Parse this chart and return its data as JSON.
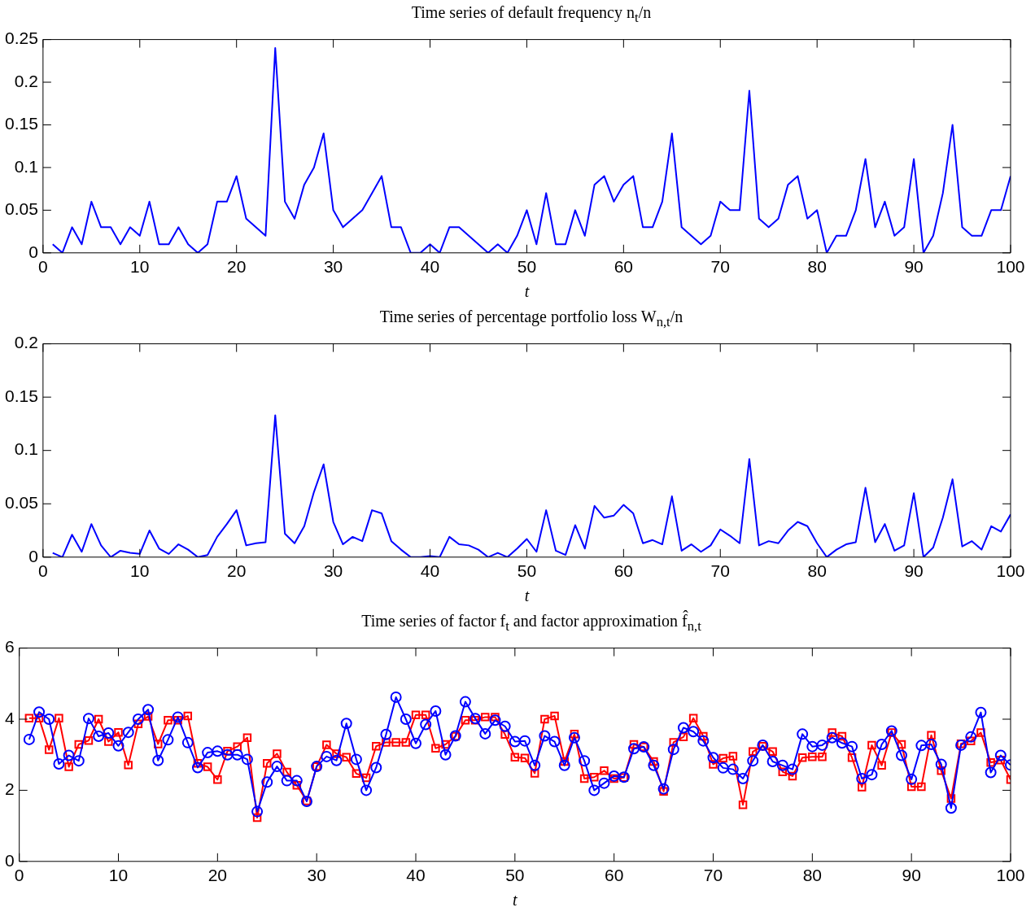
{
  "chart_data": [
    {
      "type": "line",
      "title": "Time series of default frequency n$_{t}$/n",
      "xlabel": "t",
      "x": [
        1,
        2,
        3,
        4,
        5,
        6,
        7,
        8,
        9,
        10,
        11,
        12,
        13,
        14,
        15,
        16,
        17,
        18,
        19,
        20,
        21,
        22,
        23,
        24,
        25,
        26,
        27,
        28,
        29,
        30,
        31,
        32,
        33,
        34,
        35,
        36,
        37,
        38,
        39,
        40,
        41,
        42,
        43,
        44,
        45,
        46,
        47,
        48,
        49,
        50,
        51,
        52,
        53,
        54,
        55,
        56,
        57,
        58,
        59,
        60,
        61,
        62,
        63,
        64,
        65,
        66,
        67,
        68,
        69,
        70,
        71,
        72,
        73,
        74,
        75,
        76,
        77,
        78,
        79,
        80,
        81,
        82,
        83,
        84,
        85,
        86,
        87,
        88,
        89,
        90,
        91,
        92,
        93,
        94,
        95,
        96,
        97,
        98,
        99,
        100
      ],
      "xlim": [
        0,
        100
      ],
      "xticks": [
        0,
        10,
        20,
        30,
        40,
        50,
        60,
        70,
        80,
        90,
        100
      ],
      "ylim": [
        0,
        0.25
      ],
      "yticks": [
        0,
        0.05,
        0.1,
        0.15,
        0.2,
        0.25
      ],
      "grid": false,
      "legend": false,
      "series": [
        {
          "color": "#0000ff",
          "values": [
            0.01,
            0,
            0.03,
            0.01,
            0.06,
            0.03,
            0.03,
            0.01,
            0.03,
            0.02,
            0.06,
            0.01,
            0.01,
            0.03,
            0.01,
            0,
            0.01,
            0.06,
            0.06,
            0.09,
            0.04,
            0.03,
            0.02,
            0.24,
            0.06,
            0.04,
            0.08,
            0.1,
            0.14,
            0.05,
            0.03,
            0.04,
            0.05,
            0.07,
            0.09,
            0.03,
            0.03,
            0,
            0,
            0.01,
            0,
            0.03,
            0.03,
            0.02,
            0.01,
            0,
            0.01,
            0,
            0.02,
            0.05,
            0.01,
            0.07,
            0.01,
            0.01,
            0.05,
            0.02,
            0.08,
            0.09,
            0.06,
            0.08,
            0.09,
            0.03,
            0.03,
            0.06,
            0.14,
            0.03,
            0.02,
            0.01,
            0.02,
            0.06,
            0.05,
            0.05,
            0.19,
            0.04,
            0.03,
            0.04,
            0.08,
            0.09,
            0.04,
            0.05,
            0,
            0.02,
            0.02,
            0.05,
            0.11,
            0.03,
            0.06,
            0.02,
            0.03,
            0.11,
            0,
            0.02,
            0.07,
            0.15,
            0.03,
            0.02,
            0.02,
            0.05,
            0.05,
            0.09
          ]
        }
      ]
    },
    {
      "type": "line",
      "title": "Time series of percentage portfolio loss W$_{n,t}$/n",
      "xlabel": "t",
      "x": [
        1,
        2,
        3,
        4,
        5,
        6,
        7,
        8,
        9,
        10,
        11,
        12,
        13,
        14,
        15,
        16,
        17,
        18,
        19,
        20,
        21,
        22,
        23,
        24,
        25,
        26,
        27,
        28,
        29,
        30,
        31,
        32,
        33,
        34,
        35,
        36,
        37,
        38,
        39,
        40,
        41,
        42,
        43,
        44,
        45,
        46,
        47,
        48,
        49,
        50,
        51,
        52,
        53,
        54,
        55,
        56,
        57,
        58,
        59,
        60,
        61,
        62,
        63,
        64,
        65,
        66,
        67,
        68,
        69,
        70,
        71,
        72,
        73,
        74,
        75,
        76,
        77,
        78,
        79,
        80,
        81,
        82,
        83,
        84,
        85,
        86,
        87,
        88,
        89,
        90,
        91,
        92,
        93,
        94,
        95,
        96,
        97,
        98,
        99,
        100
      ],
      "xlim": [
        0,
        100
      ],
      "xticks": [
        0,
        10,
        20,
        30,
        40,
        50,
        60,
        70,
        80,
        90,
        100
      ],
      "ylim": [
        0,
        0.2
      ],
      "yticks": [
        0,
        0.05,
        0.1,
        0.15,
        0.2
      ],
      "grid": false,
      "legend": false,
      "series": [
        {
          "color": "#0000ff",
          "values": [
            0.004,
            0,
            0.021,
            0.005,
            0.031,
            0.011,
            0,
            0.006,
            0.004,
            0.003,
            0.025,
            0.008,
            0.003,
            0.012,
            0.007,
            0,
            0.002,
            0.019,
            0.031,
            0.044,
            0.011,
            0.013,
            0.014,
            0.133,
            0.022,
            0.013,
            0.029,
            0.061,
            0.087,
            0.033,
            0.012,
            0.019,
            0.015,
            0.044,
            0.041,
            0.015,
            0.007,
            0,
            0,
            0.001,
            0,
            0.019,
            0.012,
            0.011,
            0.007,
            0,
            0.004,
            0,
            0.008,
            0.017,
            0.005,
            0.044,
            0.006,
            0.002,
            0.03,
            0.008,
            0.048,
            0.037,
            0.039,
            0.049,
            0.041,
            0.013,
            0.016,
            0.012,
            0.057,
            0.006,
            0.012,
            0.005,
            0.011,
            0.026,
            0.02,
            0.013,
            0.092,
            0.011,
            0.015,
            0.013,
            0.025,
            0.033,
            0.029,
            0.013,
            0,
            0.007,
            0.012,
            0.014,
            0.065,
            0.014,
            0.031,
            0.006,
            0.011,
            0.06,
            0,
            0.009,
            0.037,
            0.073,
            0.01,
            0.015,
            0.007,
            0.029,
            0.024,
            0.04
          ]
        }
      ]
    },
    {
      "type": "line",
      "title": "Time series of factor f$_{t}$ and factor approximation f̂$_{n,t}$",
      "xlabel": "t",
      "x": [
        1,
        2,
        3,
        4,
        5,
        6,
        7,
        8,
        9,
        10,
        11,
        12,
        13,
        14,
        15,
        16,
        17,
        18,
        19,
        20,
        21,
        22,
        23,
        24,
        25,
        26,
        27,
        28,
        29,
        30,
        31,
        32,
        33,
        34,
        35,
        36,
        37,
        38,
        39,
        40,
        41,
        42,
        43,
        44,
        45,
        46,
        47,
        48,
        49,
        50,
        51,
        52,
        53,
        54,
        55,
        56,
        57,
        58,
        59,
        60,
        61,
        62,
        63,
        64,
        65,
        66,
        67,
        68,
        69,
        70,
        71,
        72,
        73,
        74,
        75,
        76,
        77,
        78,
        79,
        80,
        81,
        82,
        83,
        84,
        85,
        86,
        87,
        88,
        89,
        90,
        91,
        92,
        93,
        94,
        95,
        96,
        97,
        98,
        99,
        100
      ],
      "xlim": [
        0,
        100
      ],
      "xticks": [
        0,
        10,
        20,
        30,
        40,
        50,
        60,
        70,
        80,
        90,
        100
      ],
      "ylim": [
        0,
        6
      ],
      "yticks": [
        0,
        2,
        4,
        6
      ],
      "grid": false,
      "legend": false,
      "series": [
        {
          "color": "#0000ff",
          "marker": "circle",
          "values": [
            3.43,
            4.2,
            4.0,
            2.74,
            2.98,
            2.83,
            4.02,
            3.52,
            3.61,
            3.25,
            3.63,
            4.0,
            4.27,
            2.84,
            3.42,
            4.06,
            3.34,
            2.64,
            3.06,
            3.1,
            3.0,
            3.0,
            2.87,
            1.4,
            2.23,
            2.67,
            2.27,
            2.27,
            1.69,
            2.67,
            2.95,
            2.84,
            3.88,
            2.87,
            2.0,
            2.64,
            3.57,
            4.62,
            4.0,
            3.32,
            3.85,
            4.23,
            3.0,
            3.53,
            4.49,
            4.02,
            3.59,
            3.97,
            3.8,
            3.37,
            3.39,
            2.7,
            3.53,
            3.37,
            2.7,
            3.48,
            2.83,
            2.0,
            2.2,
            2.4,
            2.37,
            3.17,
            3.22,
            2.7,
            2.04,
            3.15,
            3.76,
            3.65,
            3.39,
            2.92,
            2.63,
            2.59,
            2.33,
            2.83,
            3.27,
            2.81,
            2.7,
            2.59,
            3.58,
            3.23,
            3.27,
            3.48,
            3.33,
            3.23,
            2.33,
            2.44,
            3.29,
            3.67,
            2.98,
            2.31,
            3.26,
            3.29,
            2.73,
            1.5,
            3.27,
            3.5,
            4.19,
            2.5,
            2.98,
            2.71
          ]
        },
        {
          "color": "#ff0000",
          "marker": "square",
          "values": [
            4.03,
            4.03,
            3.14,
            4.03,
            2.66,
            3.29,
            3.4,
            4.0,
            3.37,
            3.63,
            2.71,
            3.87,
            4.08,
            3.3,
            3.97,
            3.97,
            4.09,
            2.76,
            2.66,
            2.3,
            3.1,
            3.23,
            3.48,
            1.23,
            2.76,
            3.03,
            2.51,
            2.14,
            1.7,
            2.67,
            3.28,
            3.03,
            2.93,
            2.47,
            2.35,
            3.24,
            3.35,
            3.35,
            3.35,
            4.12,
            4.12,
            3.18,
            3.29,
            3.52,
            3.97,
            3.97,
            4.06,
            4.06,
            3.57,
            2.93,
            2.91,
            2.48,
            4.0,
            4.09,
            2.81,
            3.58,
            2.33,
            2.37,
            2.55,
            2.33,
            2.36,
            3.29,
            3.22,
            2.81,
            1.97,
            3.35,
            3.5,
            4.03,
            3.52,
            2.73,
            2.9,
            2.96,
            1.59,
            3.09,
            3.24,
            3.09,
            2.52,
            2.4,
            2.92,
            2.94,
            2.94,
            3.62,
            3.52,
            2.92,
            2.09,
            3.27,
            2.7,
            3.62,
            3.29,
            2.1,
            2.1,
            3.55,
            2.55,
            1.77,
            3.31,
            3.39,
            3.62,
            2.78,
            2.85,
            2.3
          ]
        }
      ]
    }
  ]
}
